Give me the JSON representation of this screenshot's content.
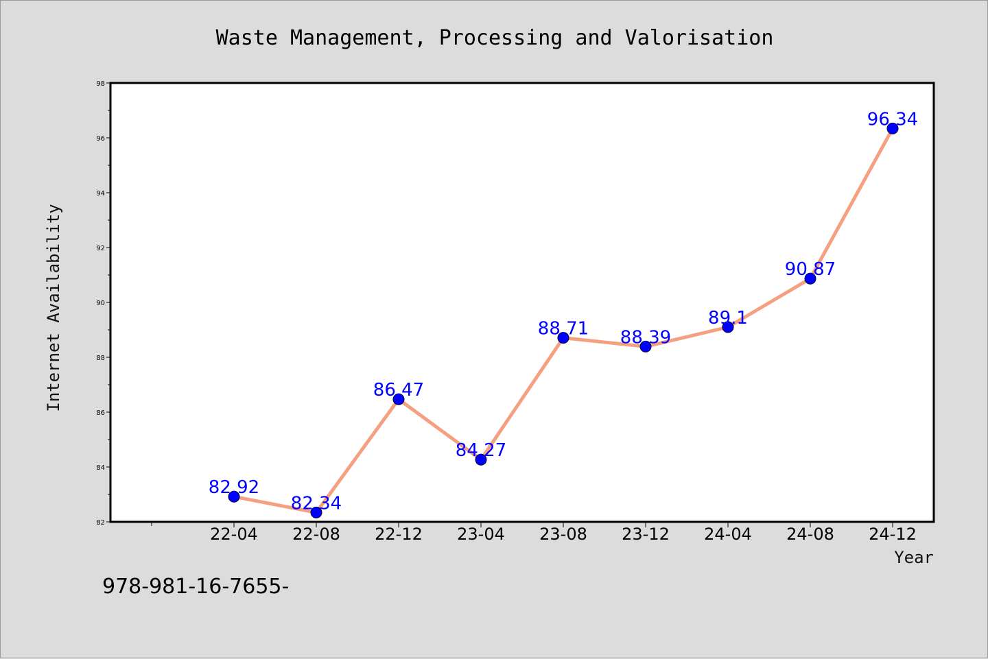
{
  "chart_data": {
    "type": "line",
    "title": "Waste Management, Processing and Valorisation",
    "xlabel": "Year",
    "ylabel": "Internet Availability",
    "categories": [
      "22-04",
      "22-08",
      "22-12",
      "23-04",
      "23-08",
      "23-12",
      "24-04",
      "24-08",
      "24-12"
    ],
    "series": [
      {
        "values": [
          82.92,
          82.34,
          86.47,
          84.27,
          88.71,
          88.39,
          89.1,
          90.87,
          96.34
        ],
        "labels": [
          "82.92",
          "82.34",
          "86.47",
          "84.27",
          "88.71",
          "88.39",
          "89.1",
          "90.87",
          "96.34"
        ]
      }
    ],
    "ylim": [
      82,
      98
    ],
    "yticks": [
      "82",
      "84",
      "86",
      "88",
      "90",
      "92",
      "94",
      "96",
      "98"
    ],
    "grid": false,
    "line_color": "#f4a081",
    "marker_color": "#0000ff",
    "label_color": "#0000ff"
  },
  "footer_text": "978-981-16-7655-"
}
